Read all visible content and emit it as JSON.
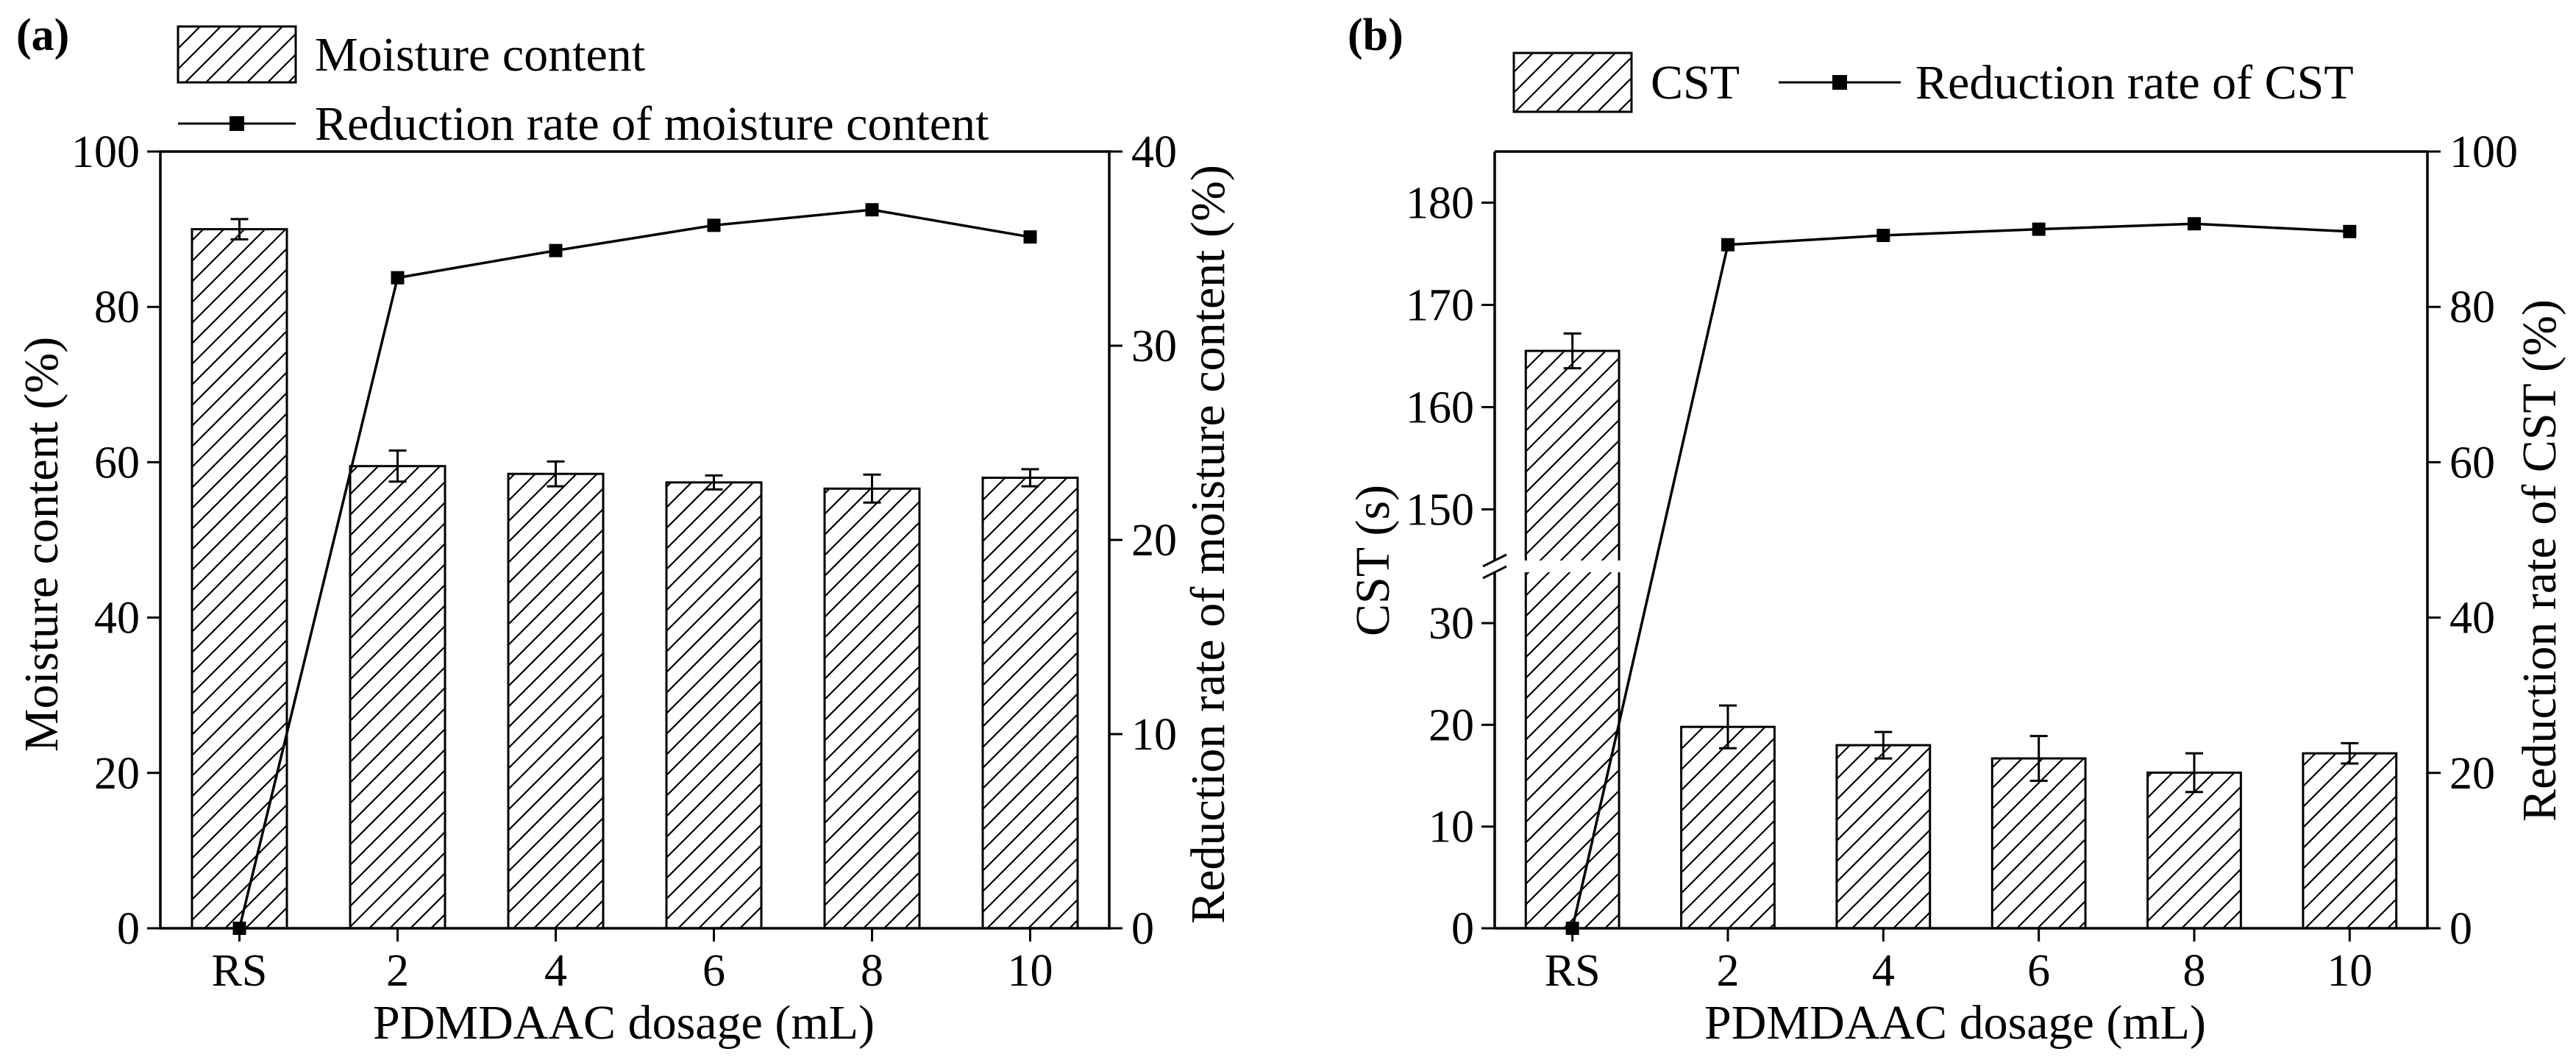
{
  "chart_data": [
    {
      "type": "bar",
      "panel_label": "(a)",
      "categories": [
        "RS",
        "2",
        "4",
        "6",
        "8",
        "10"
      ],
      "xlabel": "PDMDAAC dosage (mL)",
      "ylabel": "Moisture content (%)",
      "y2label": "Reduction rate of moisture content (%)",
      "ylim": [
        0,
        100
      ],
      "y2lim": [
        0,
        40
      ],
      "yticks": [
        0,
        20,
        40,
        60,
        80,
        100
      ],
      "y2ticks": [
        0,
        10,
        20,
        30,
        40
      ],
      "series": [
        {
          "name": "Moisture content",
          "kind": "bar",
          "axis": "left",
          "values": [
            90.0,
            59.5,
            58.5,
            57.4,
            56.6,
            58.0
          ],
          "errors": [
            1.3,
            2.0,
            1.6,
            0.9,
            1.8,
            1.1
          ]
        },
        {
          "name": "Reduction rate of moisture content",
          "kind": "line",
          "axis": "right",
          "values": [
            0,
            33.5,
            34.9,
            36.2,
            37.0,
            35.6
          ]
        }
      ],
      "legend": [
        "Moisture content",
        "Reduction rate of moisture content"
      ],
      "legend_position": "top"
    },
    {
      "type": "bar",
      "panel_label": "(b)",
      "categories": [
        "RS",
        "2",
        "4",
        "6",
        "8",
        "10"
      ],
      "xlabel": "PDMDAAC dosage (mL)",
      "ylabel": "CST (s)",
      "y2label": "Reduction rate of CST (%)",
      "ylim_lower": [
        0,
        35
      ],
      "ylim_upper": [
        145,
        185
      ],
      "axis_break": true,
      "yticks_lower": [
        0,
        10,
        20,
        30
      ],
      "yticks_upper": [
        150,
        160,
        170,
        180
      ],
      "y2lim": [
        0,
        100
      ],
      "y2ticks": [
        0,
        20,
        40,
        60,
        80,
        100
      ],
      "series": [
        {
          "name": "CST",
          "kind": "bar",
          "axis": "left",
          "values": [
            165.5,
            19.8,
            18.0,
            16.7,
            15.3,
            17.2
          ],
          "errors": [
            1.7,
            2.1,
            1.3,
            2.2,
            1.9,
            1.0
          ]
        },
        {
          "name": "Reduction rate of CST",
          "kind": "line",
          "axis": "right",
          "values": [
            0,
            88.0,
            89.2,
            90.0,
            90.7,
            89.7
          ]
        }
      ],
      "legend": [
        "CST",
        "Reduction rate of CST"
      ],
      "legend_position": "top"
    }
  ]
}
